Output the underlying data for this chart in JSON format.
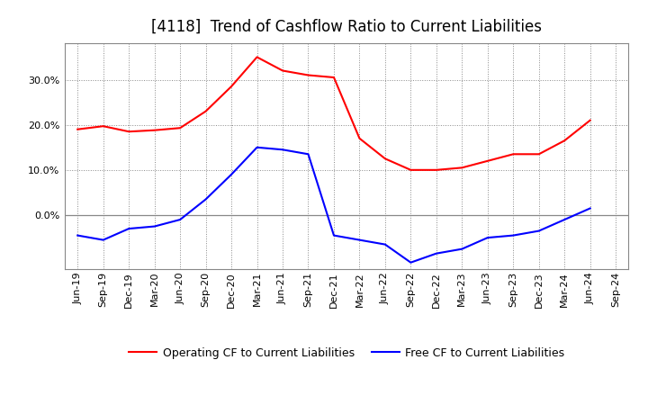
{
  "title": "[4118]  Trend of Cashflow Ratio to Current Liabilities",
  "x_labels": [
    "Jun-19",
    "Sep-19",
    "Dec-19",
    "Mar-20",
    "Jun-20",
    "Sep-20",
    "Dec-20",
    "Mar-21",
    "Jun-21",
    "Sep-21",
    "Dec-21",
    "Mar-22",
    "Jun-22",
    "Sep-22",
    "Dec-22",
    "Mar-23",
    "Jun-23",
    "Sep-23",
    "Dec-23",
    "Mar-24",
    "Jun-24",
    "Sep-24"
  ],
  "operating_cf": [
    19.0,
    19.7,
    18.5,
    18.8,
    19.3,
    23.0,
    28.5,
    35.0,
    32.0,
    31.0,
    30.5,
    17.0,
    12.5,
    10.0,
    10.0,
    10.5,
    12.0,
    13.5,
    13.5,
    16.5,
    21.0,
    null
  ],
  "free_cf": [
    -4.5,
    -5.5,
    -3.0,
    -2.5,
    -1.0,
    3.5,
    9.0,
    15.0,
    14.5,
    13.5,
    -4.5,
    -5.5,
    -6.5,
    -10.5,
    -8.5,
    -7.5,
    -5.0,
    -4.5,
    -3.5,
    -1.0,
    1.5,
    null
  ],
  "operating_color": "#FF0000",
  "free_color": "#0000FF",
  "ylim": [
    -12,
    38
  ],
  "yticks": [
    0,
    10,
    20,
    30
  ],
  "background_color": "#FFFFFF",
  "plot_bg_color": "#FFFFFF",
  "grid_color": "#888888",
  "title_fontsize": 12,
  "legend_fontsize": 9,
  "tick_fontsize": 8
}
